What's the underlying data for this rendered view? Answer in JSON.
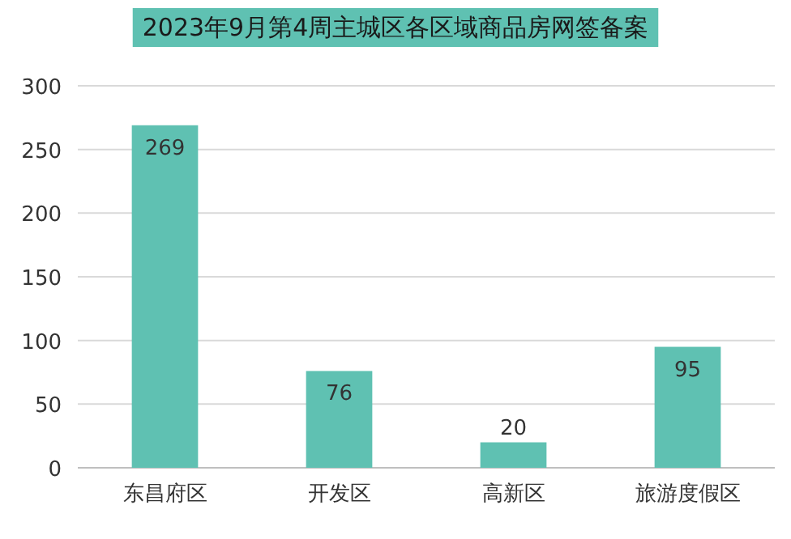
{
  "chart_data": {
    "type": "bar",
    "title": "2023年9月第4周主城区各区域商品房网签备案",
    "categories": [
      "东昌府区",
      "开发区",
      "高新区",
      "旅游度假区"
    ],
    "values": [
      269,
      76,
      20,
      95
    ],
    "color": "#5fc1b2",
    "ylim": [
      0,
      300
    ],
    "yticks": [
      0,
      50,
      100,
      150,
      200,
      250,
      300
    ],
    "grid": "y",
    "data_labels": true
  }
}
